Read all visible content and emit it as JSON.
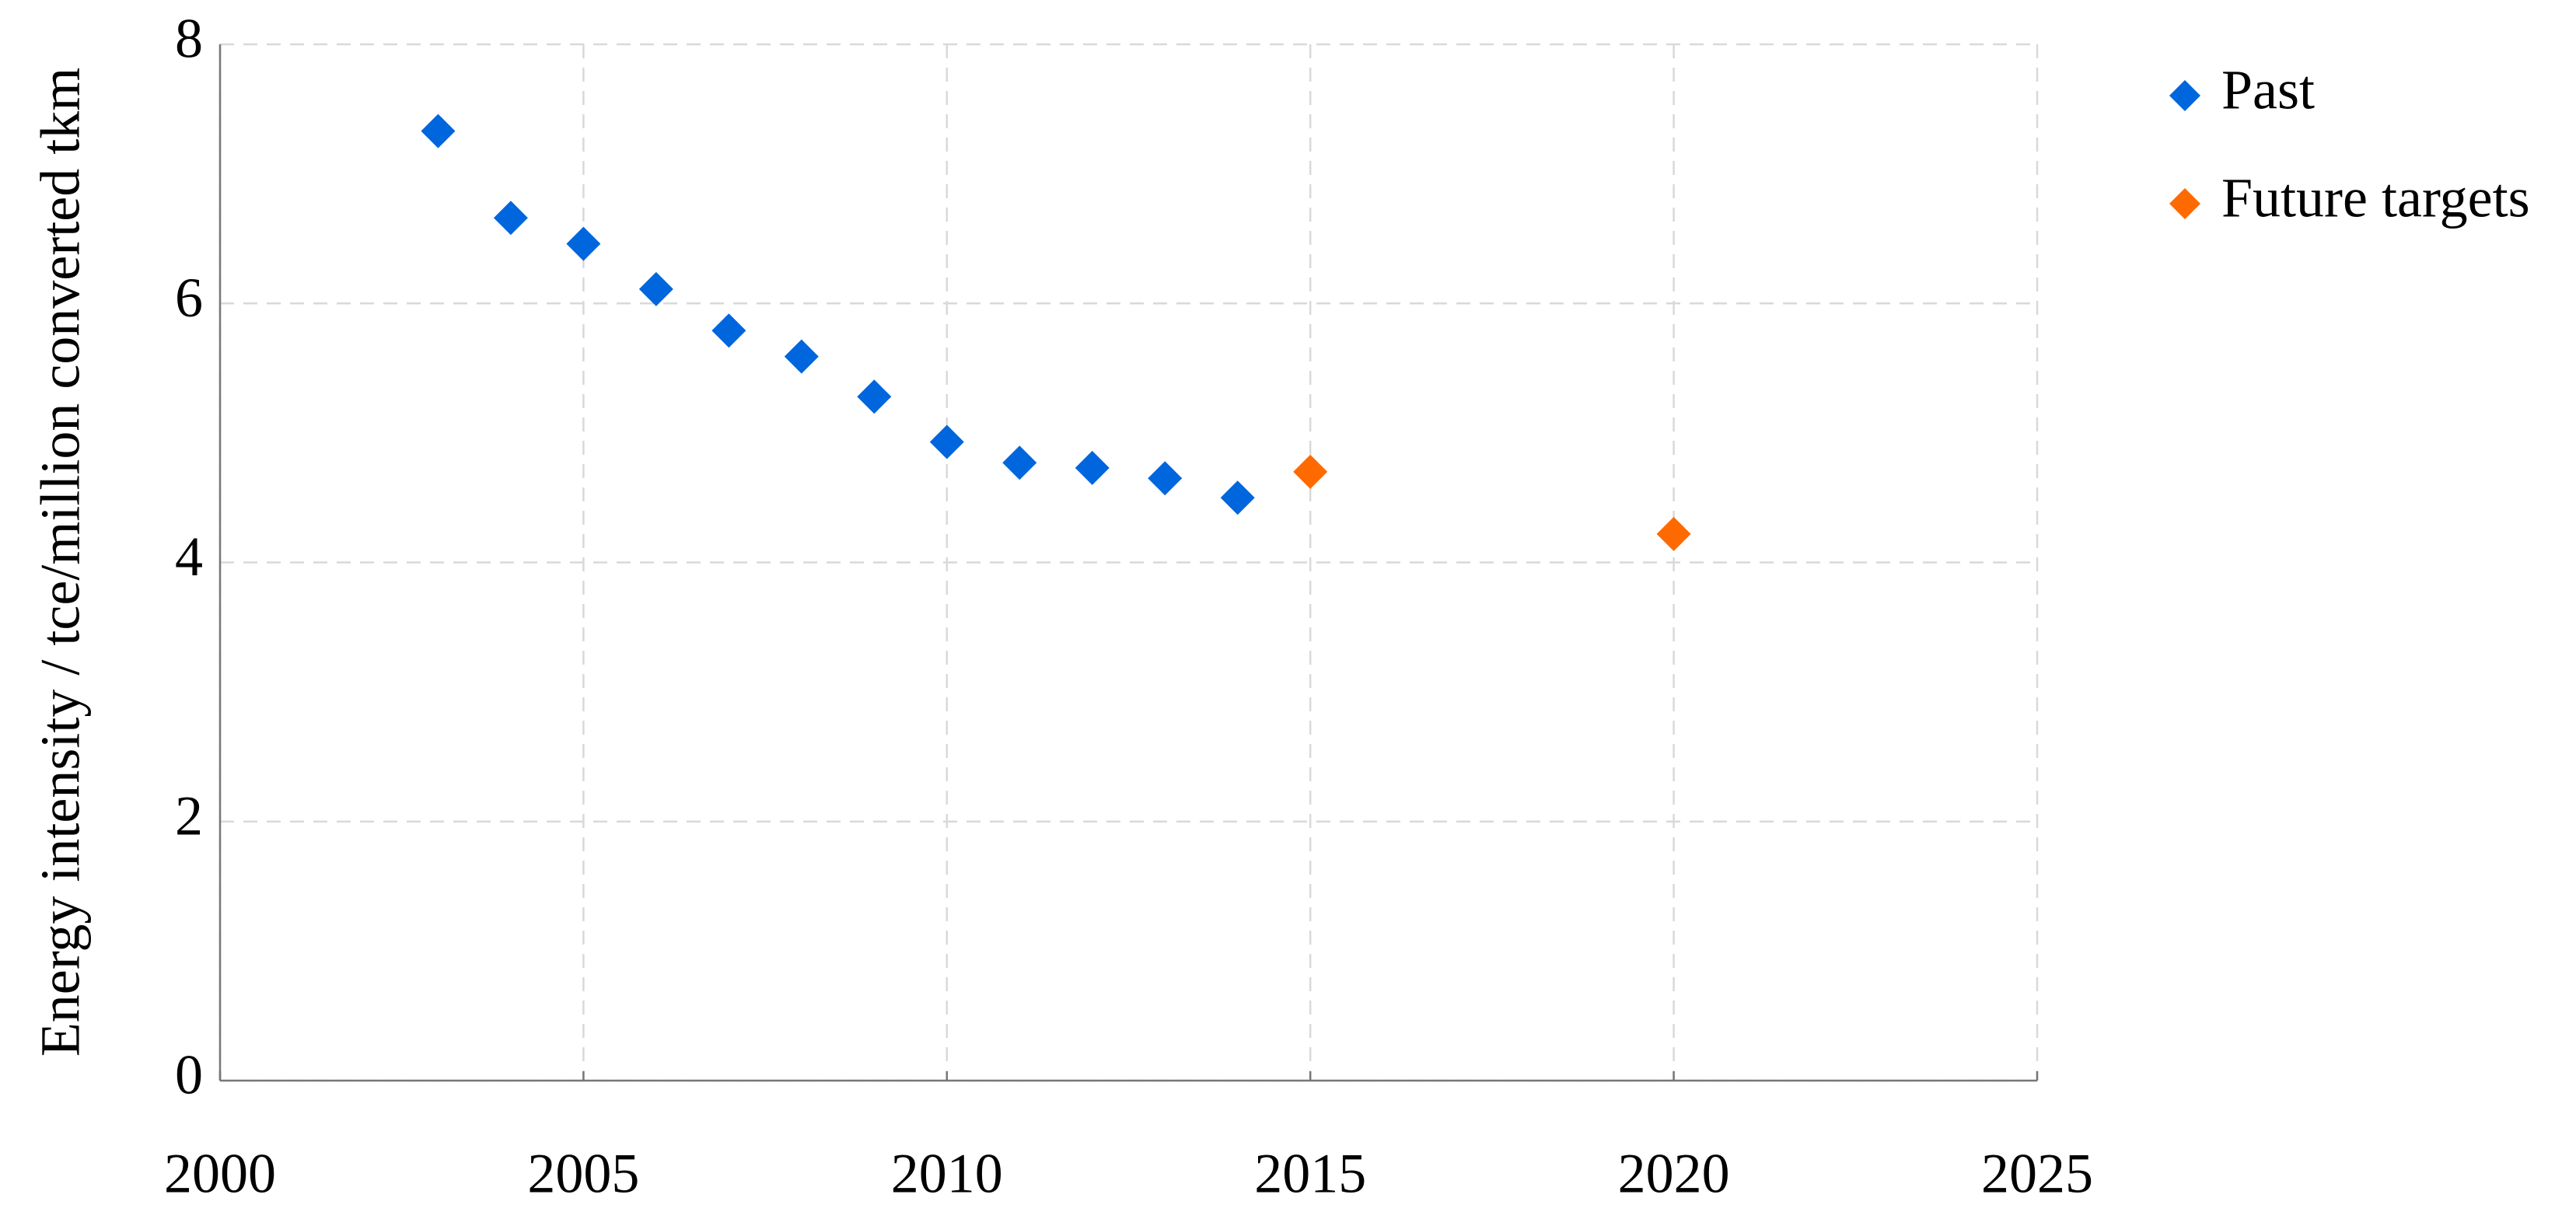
{
  "chart_data": {
    "type": "scatter",
    "y_label": "Energy intensity / tce/million converted tkm",
    "series": [
      {
        "name": "Past",
        "color": "#0066dd",
        "x": [
          2003,
          2004,
          2005,
          2006,
          2007,
          2008,
          2009,
          2010,
          2011,
          2012,
          2013,
          2014
        ],
        "values": [
          7.33,
          6.66,
          6.46,
          6.11,
          5.79,
          5.59,
          5.28,
          4.93,
          4.77,
          4.73,
          4.65,
          4.5
        ]
      },
      {
        "name": "Future targets",
        "color": "#ff6a00",
        "x": [
          2015,
          2020
        ],
        "values": [
          4.7,
          4.22
        ]
      }
    ],
    "xlim": [
      2000,
      2025
    ],
    "xticks": [
      2000,
      2005,
      2010,
      2015,
      2020,
      2025
    ],
    "ylim": [
      0,
      8
    ],
    "yticks": [
      0,
      2,
      4,
      6,
      8
    ],
    "grid": true,
    "legend": "right"
  }
}
